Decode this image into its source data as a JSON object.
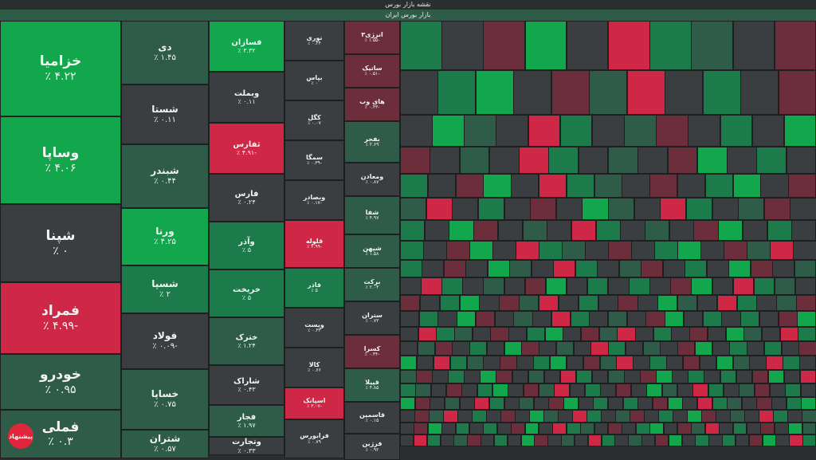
{
  "header": {
    "title": "نقشه بازار بورس",
    "subtitle": "بازار بورس ایران"
  },
  "colors": {
    "dg": "#12a64d",
    "g": "#1d7a4a",
    "mg": "#2f5c48",
    "n": "#3b3e40",
    "mr": "#6b2e3a",
    "r": "#cf2846"
  },
  "tiles": [
    {
      "n": "خزامیا",
      "v": "٪ ۴.۲۲",
      "c": "dg"
    },
    {
      "n": "وساپا",
      "v": "٪ ۴.۰۶",
      "c": "dg"
    },
    {
      "n": "شپنا",
      "v": "٪ ۰",
      "c": "n"
    },
    {
      "n": "فمراد",
      "v": "٪ ۴.۹۹-",
      "c": "r"
    },
    {
      "n": "خودرو",
      "v": "٪ ۰.۹۵",
      "c": "mg"
    },
    {
      "n": "فملی",
      "v": "٪ ۰.۳",
      "c": "mg"
    },
    {
      "n": "دی",
      "v": "٪ ۱.۴۵",
      "c": "mg"
    },
    {
      "n": "شستا",
      "v": "٪ ۰.۱۱",
      "c": "n"
    },
    {
      "n": "شبندر",
      "v": "٪ ۰.۴۴",
      "c": "mg"
    },
    {
      "n": "ورنا",
      "v": "٪ ۴.۲۵",
      "c": "dg"
    },
    {
      "n": "شسپا",
      "v": "٪ ۲",
      "c": "g"
    },
    {
      "n": "فولاد",
      "v": "٪ ۰.۰۹-",
      "c": "n"
    },
    {
      "n": "خساپا",
      "v": "٪ ۰.۷۵",
      "c": "mg"
    },
    {
      "n": "شتران",
      "v": "٪ ۰.۵۷",
      "c": "mg"
    },
    {
      "n": "فسازان",
      "v": "٪ ۳.۳۲",
      "c": "dg"
    },
    {
      "n": "وبملت",
      "v": "٪ ۰.۱۱",
      "c": "n"
    },
    {
      "n": "ثفارس",
      "v": "٪ ۴.۹۱-",
      "c": "r"
    },
    {
      "n": "فارس",
      "v": "٪ ۰.۲۴",
      "c": "n"
    },
    {
      "n": "وآذر",
      "v": "٪ ۵",
      "c": "g"
    },
    {
      "n": "خریخت",
      "v": "٪ ۵",
      "c": "g"
    },
    {
      "n": "خترک",
      "v": "٪ ۱.۲۴",
      "c": "mg"
    },
    {
      "n": "شاراک",
      "v": "٪ ۰.۴۳",
      "c": "n"
    },
    {
      "n": "فجار",
      "v": "٪ ۱.۹۷",
      "c": "mg"
    },
    {
      "n": "وتجارت",
      "v": "٪ ۰.۳۳",
      "c": "n"
    },
    {
      "n": "نوری",
      "v": "٪ ۰.۲۴",
      "c": "n"
    },
    {
      "n": "بپاس",
      "v": "٪ ۰",
      "c": "n"
    },
    {
      "n": "کگل",
      "v": "٪ ۰.۰۷",
      "c": "n"
    },
    {
      "n": "سمگا",
      "v": "٪ ۰.۳۹-",
      "c": "n"
    },
    {
      "n": "وبصادر",
      "v": "٪ ۰.۱۷-",
      "c": "n"
    },
    {
      "n": "قلوله",
      "v": "٪ ۴.۹۹-",
      "c": "r"
    },
    {
      "n": "فاذر",
      "v": "٪ ۵",
      "c": "g"
    },
    {
      "n": "ویست",
      "v": "٪ ۰.۳۳",
      "c": "n"
    },
    {
      "n": "کالا",
      "v": "٪ ۰.۶۶",
      "c": "n"
    },
    {
      "n": "اسپانک",
      "v": "٪ ۳.۰۷-",
      "c": "r"
    },
    {
      "n": "فرابورس",
      "v": "٪ ۰.۷۹",
      "c": "n"
    },
    {
      "n": "انرژی۳",
      "v": "٪ ۱.۵۵-",
      "c": "mr"
    },
    {
      "n": "ساتیک",
      "v": "٪ ۰.۵۱-",
      "c": "mr"
    },
    {
      "n": "های وب",
      "v": "٪ ۰.۴۳-",
      "c": "mr"
    },
    {
      "n": "بفجر",
      "v": "٪ ۲.۶۹",
      "c": "mg"
    },
    {
      "n": "ومعادن",
      "v": "٪ ۰.۸۷",
      "c": "n"
    },
    {
      "n": "شفا",
      "v": "٪ ۴.۹۷",
      "c": "mg"
    },
    {
      "n": "شپهن",
      "v": "٪ ۱.۵۸",
      "c": "mg"
    },
    {
      "n": "برکت",
      "v": "٪ ۲.۰۴",
      "c": "mg"
    },
    {
      "n": "ستران",
      "v": "٪ ۰.۷۳",
      "c": "n"
    },
    {
      "n": "کسرا",
      "v": "٪ ۰.۴۴-",
      "c": "mr"
    },
    {
      "n": "قپیلا",
      "v": "٪ ۴.۸۵",
      "c": "mg"
    },
    {
      "n": "قاسمین",
      "v": "٪ ۰.۱۵",
      "c": "n"
    },
    {
      "n": "فرژین",
      "v": "٪ ۰.۹۲",
      "c": "n"
    }
  ],
  "cell_colors": [
    "g",
    "n",
    "mr",
    "dg",
    "n",
    "r",
    "g",
    "mg",
    "n",
    "mr",
    "n",
    "g",
    "dg",
    "n",
    "mr",
    "mg",
    "r",
    "n",
    "g",
    "n",
    "mr",
    "n",
    "dg",
    "mg",
    "n",
    "r",
    "g",
    "n",
    "mg",
    "mr",
    "n",
    "g",
    "n",
    "dg",
    "mr",
    "n",
    "mg",
    "n",
    "r",
    "g",
    "n",
    "mg",
    "n",
    "mr",
    "dg",
    "n",
    "g",
    "n"
  ],
  "logo_text": "پیشنهاد"
}
